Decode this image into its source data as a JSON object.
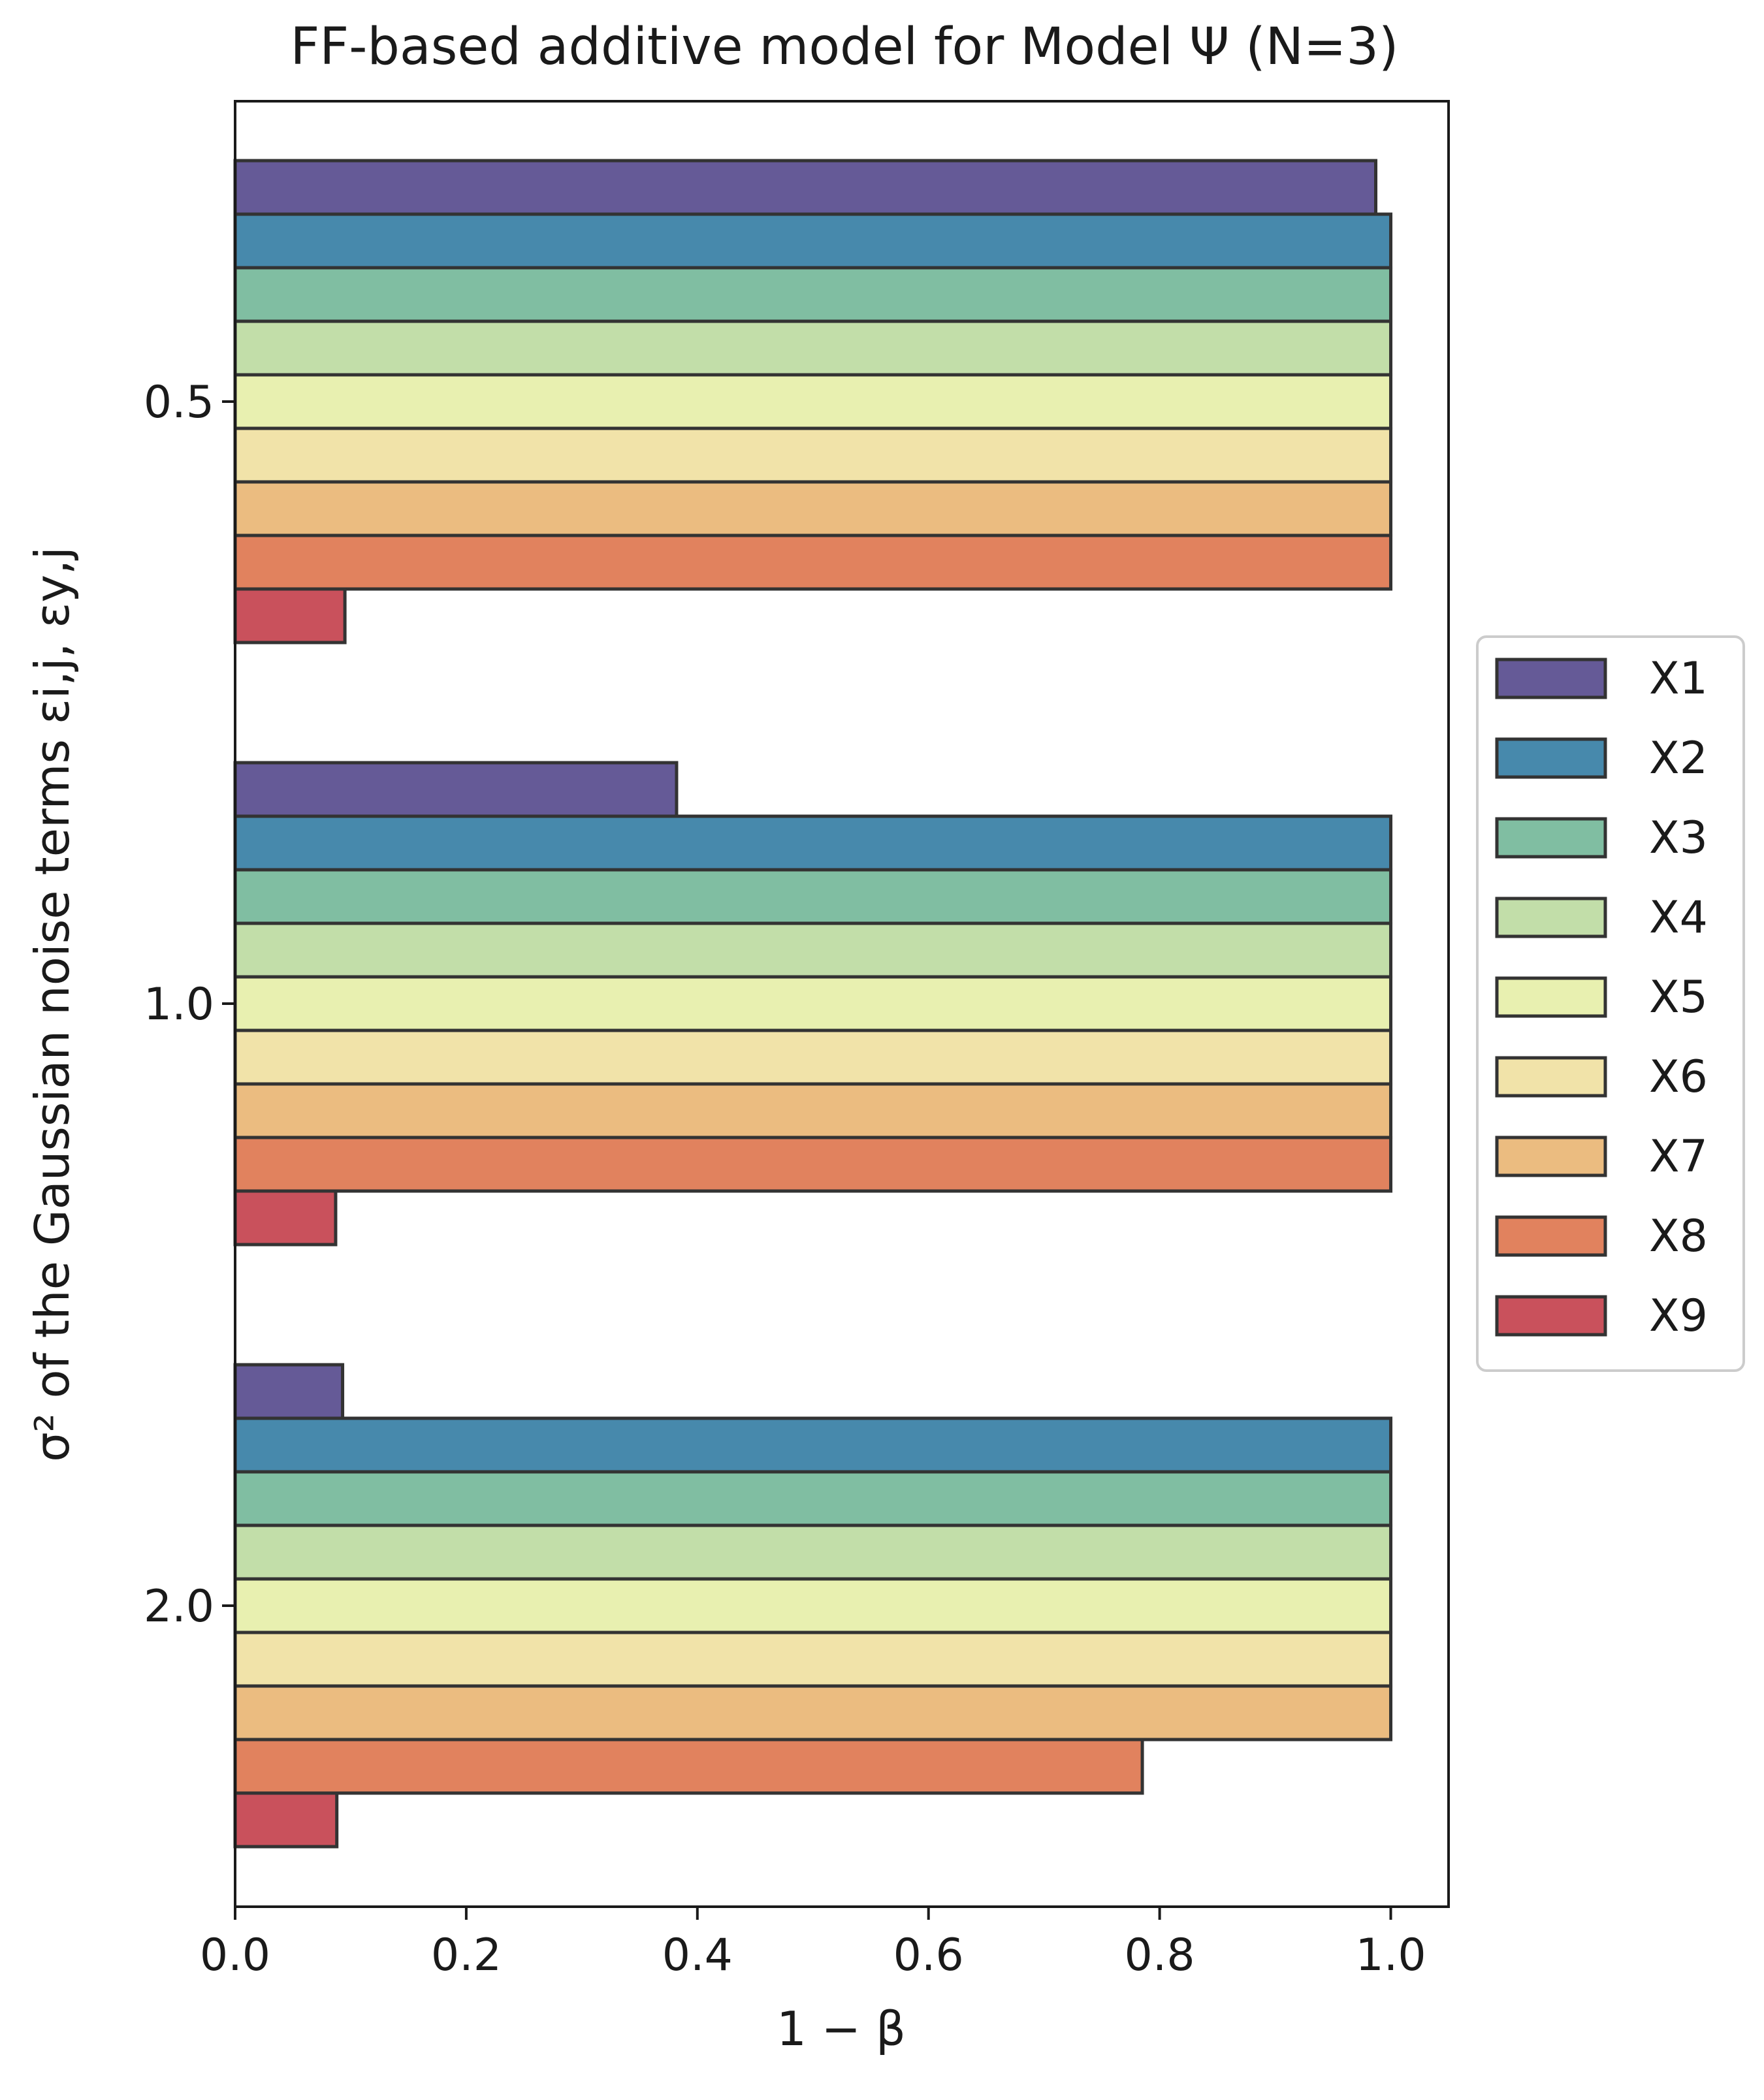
{
  "chart_data": {
    "type": "bar",
    "orientation": "horizontal",
    "title": "FF-based additive model for Model Ψ (N=3)",
    "xlabel": "1 − β",
    "ylabel": "σ² of the Gaussian noise terms εi,j, εy,j",
    "categories": [
      "0.5",
      "1.0",
      "2.0"
    ],
    "xlim": [
      0,
      1.05
    ],
    "xticks": [
      "0.0",
      "0.2",
      "0.4",
      "0.6",
      "0.8",
      "1.0"
    ],
    "xtick_values": [
      0,
      0.2,
      0.4,
      0.6,
      0.8,
      1.0
    ],
    "grid": false,
    "legend_position": "center-right outside",
    "series": [
      {
        "name": "X1",
        "color": "#655a97",
        "values": [
          0.987,
          0.382,
          0.093
        ]
      },
      {
        "name": "X2",
        "color": "#4789ac",
        "values": [
          1.0,
          1.0,
          1.0
        ]
      },
      {
        "name": "X3",
        "color": "#80bea2",
        "values": [
          1.0,
          1.0,
          1.0
        ]
      },
      {
        "name": "X4",
        "color": "#c2dea9",
        "values": [
          1.0,
          1.0,
          1.0
        ]
      },
      {
        "name": "X5",
        "color": "#e8f0b0",
        "values": [
          1.0,
          1.0,
          1.0
        ]
      },
      {
        "name": "X6",
        "color": "#f1e3a9",
        "values": [
          1.0,
          1.0,
          1.0
        ]
      },
      {
        "name": "X7",
        "color": "#ebbc80",
        "values": [
          1.0,
          1.0,
          1.0
        ]
      },
      {
        "name": "X8",
        "color": "#e1825e",
        "values": [
          1.0,
          1.0,
          0.785
        ]
      },
      {
        "name": "X9",
        "color": "#c9515c",
        "values": [
          0.095,
          0.087,
          0.088
        ]
      }
    ],
    "bar_edge_color": "#333333"
  }
}
